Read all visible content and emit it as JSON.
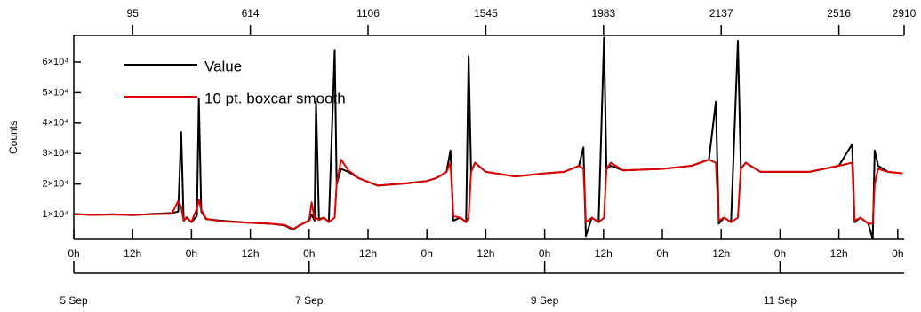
{
  "chart_data": {
    "type": "line",
    "y_label": "Counts",
    "x": [
      0,
      4,
      8,
      12,
      16,
      20,
      21.3,
      21.9,
      22.4,
      23,
      24,
      25.1,
      25.5,
      26,
      27,
      30,
      36,
      40,
      43,
      44.7,
      46,
      48,
      48.5,
      49.1,
      49.4,
      50,
      51,
      52,
      53.2,
      53.6,
      54.5,
      56,
      58,
      62,
      68,
      72,
      74,
      76,
      76.8,
      77.4,
      78.8,
      80,
      80.5,
      81,
      81.8,
      84,
      90,
      96,
      100,
      103,
      103.9,
      104.4,
      105.6,
      107,
      108.1,
      108.6,
      109.5,
      112,
      120,
      126,
      129.5,
      130.9,
      131.5,
      132.6,
      134,
      135.4,
      136,
      137,
      140,
      150,
      156,
      158.7,
      159.2,
      160.4,
      162,
      162.9,
      163.3,
      164,
      166,
      169
    ],
    "series": [
      {
        "name": "Value",
        "color": "#000000",
        "values": [
          10200,
          9900,
          10100,
          9800,
          10200,
          10500,
          11000,
          37000,
          8000,
          9000,
          7500,
          9500,
          48000,
          11000,
          8500,
          8000,
          7300,
          7000,
          6500,
          5000,
          6500,
          8000,
          10000,
          8000,
          47000,
          8500,
          9000,
          7500,
          64000,
          20000,
          25000,
          24000,
          22000,
          19500,
          20300,
          21000,
          22000,
          24000,
          31000,
          8000,
          9000,
          7500,
          62000,
          24000,
          27000,
          24000,
          22500,
          23500,
          24000,
          26000,
          32000,
          3000,
          9000,
          7500,
          68000,
          25000,
          26000,
          24500,
          25000,
          26000,
          28000,
          47000,
          7000,
          9000,
          7500,
          67000,
          25000,
          27000,
          24000,
          24000,
          26000,
          33000,
          7500,
          9000,
          7000,
          2000,
          31000,
          26000,
          24000,
          23500
        ]
      },
      {
        "name": "10 pt. boxcar smooth",
        "color": "#e00000",
        "values": [
          10100,
          9900,
          10000,
          9900,
          10100,
          10300,
          14500,
          12500,
          8000,
          9200,
          7600,
          12000,
          15000,
          11500,
          8600,
          7800,
          7300,
          7000,
          6600,
          5300,
          6400,
          8200,
          14000,
          8500,
          9000,
          8200,
          9000,
          7600,
          9000,
          20000,
          28000,
          24500,
          22000,
          19500,
          20200,
          21000,
          22000,
          24000,
          27000,
          9500,
          9000,
          7500,
          9000,
          24000,
          27000,
          24000,
          22500,
          23500,
          24000,
          26000,
          25000,
          7500,
          9000,
          7500,
          9000,
          25000,
          27000,
          24500,
          25000,
          26000,
          28000,
          27000,
          8000,
          9000,
          7500,
          9000,
          25000,
          27000,
          24000,
          24000,
          26000,
          27000,
          8000,
          9000,
          7000,
          7000,
          20000,
          25000,
          24000,
          23500
        ]
      }
    ],
    "xlim": [
      0,
      169.3
    ],
    "xticks": [
      {
        "value": 0,
        "label": "0h"
      },
      {
        "value": 12,
        "label": "12h"
      },
      {
        "value": 24,
        "label": "0h"
      },
      {
        "value": 36,
        "label": "12h"
      },
      {
        "value": 48,
        "label": "0h"
      },
      {
        "value": 60,
        "label": "12h"
      },
      {
        "value": 72,
        "label": "0h"
      },
      {
        "value": 84,
        "label": "12h"
      },
      {
        "value": 96,
        "label": "0h"
      },
      {
        "value": 108,
        "label": "12h"
      },
      {
        "value": 120,
        "label": "0h"
      },
      {
        "value": 132,
        "label": "12h"
      },
      {
        "value": 144,
        "label": "0h"
      },
      {
        "value": 156,
        "label": "12h"
      },
      {
        "value": 168,
        "label": "0h"
      }
    ],
    "date_ticks": [
      {
        "value": 0,
        "label": "5 Sep"
      },
      {
        "value": 48,
        "label": "7 Sep"
      },
      {
        "value": 96,
        "label": "9 Sep"
      },
      {
        "value": 144,
        "label": "11 Sep"
      }
    ],
    "x2ticks": [
      {
        "value": 12,
        "label": "95"
      },
      {
        "value": 36,
        "label": "614"
      },
      {
        "value": 60,
        "label": "1106"
      },
      {
        "value": 84,
        "label": "1545"
      },
      {
        "value": 108,
        "label": "1983"
      },
      {
        "value": 132,
        "label": "2137"
      },
      {
        "value": 156,
        "label": "2516"
      },
      {
        "value": 169.3,
        "label": "2910"
      }
    ],
    "ylim": [
      1900,
      68700
    ],
    "yticks": [
      {
        "value": 10000,
        "label": "1×10⁴"
      },
      {
        "value": 20000,
        "label": "2×10⁴"
      },
      {
        "value": 30000,
        "label": "3×10⁴"
      },
      {
        "value": 40000,
        "label": "4×10⁴"
      },
      {
        "value": 50000,
        "label": "5×10⁴"
      },
      {
        "value": 60000,
        "label": "6×10⁴"
      }
    ],
    "grid": false
  }
}
